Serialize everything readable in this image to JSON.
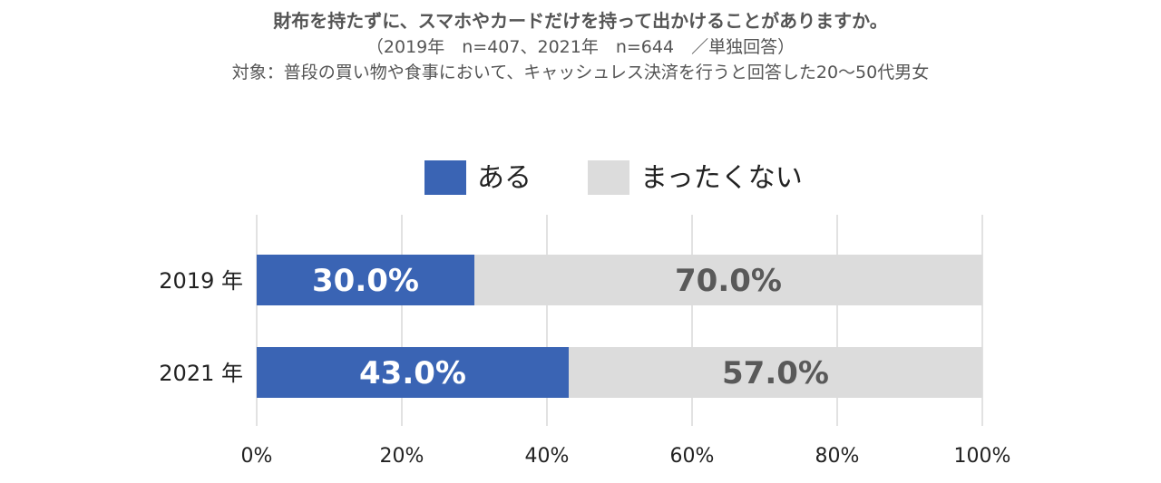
{
  "title": {
    "line1": "財布を持たずに、スマホやカードだけを持って出かけることがありますか。",
    "line2": "（2019年　n=407、2021年　n=644　／単独回答）",
    "line3": "対象：普段の買い物や食事において、キャッシュレス決済を行うと回答した20～50代男女"
  },
  "chart_data": {
    "type": "bar",
    "orientation": "horizontal",
    "stacked": true,
    "categories": [
      "2019 年",
      "2021 年"
    ],
    "series": [
      {
        "name": "ある",
        "values": [
          30.0,
          43.0
        ],
        "labels": [
          "30.0%",
          "43.0%"
        ],
        "color": "#3a64b4",
        "label_color": "#ffffff"
      },
      {
        "name": "まったくない",
        "values": [
          70.0,
          57.0
        ],
        "labels": [
          "70.0%",
          "57.0%"
        ],
        "color": "#dcdcdc",
        "label_color": "#595959"
      }
    ],
    "xlim": [
      0,
      100
    ],
    "xticks": [
      "0%",
      "20%",
      "40%",
      "60%",
      "80%",
      "100%"
    ],
    "grid": true,
    "legend_position": "top"
  }
}
